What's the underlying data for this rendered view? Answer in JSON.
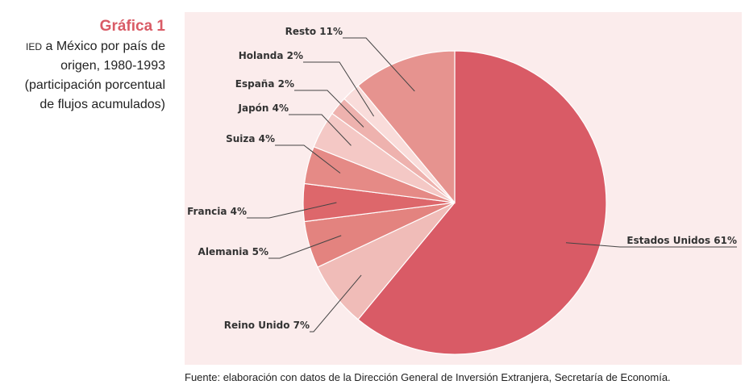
{
  "sidebar": {
    "title": "Gráfica 1",
    "subtitle_abbr": "IED",
    "subtitle_rest": " a México por país de",
    "subtitle_lines": [
      "origen, 1980-1993",
      "(participación porcentual",
      "de flujos acumulados)"
    ]
  },
  "source": "Fuente: elaboración con datos de la Dirección General de Inversión Extranjera, Secretaría de Economía.",
  "chart_data": {
    "type": "pie",
    "unit": "%",
    "slices": [
      {
        "label": "Estados Unidos 61%",
        "name": "Estados Unidos",
        "value": 61,
        "color": "#d95b66"
      },
      {
        "label": "Reino Unido 7%",
        "name": "Reino Unido",
        "value": 7,
        "color": "#f0bcb8"
      },
      {
        "label": "Alemania 5%",
        "name": "Alemania",
        "value": 5,
        "color": "#e3837f"
      },
      {
        "label": "Francia 4%",
        "name": "Francia",
        "value": 4,
        "color": "#dd676b"
      },
      {
        "label": "Suiza 4%",
        "name": "Suiza",
        "value": 4,
        "color": "#e58a86"
      },
      {
        "label": "Japón 4%",
        "name": "Japón",
        "value": 4,
        "color": "#f4c8c5"
      },
      {
        "label": "España 2%",
        "name": "España",
        "value": 2,
        "color": "#eeb2ae"
      },
      {
        "label": "Holanda 2%",
        "name": "Holanda",
        "value": 2,
        "color": "#f9dcda"
      },
      {
        "label": "Resto 11%",
        "name": "Resto",
        "value": 11,
        "color": "#e6938f"
      }
    ]
  }
}
